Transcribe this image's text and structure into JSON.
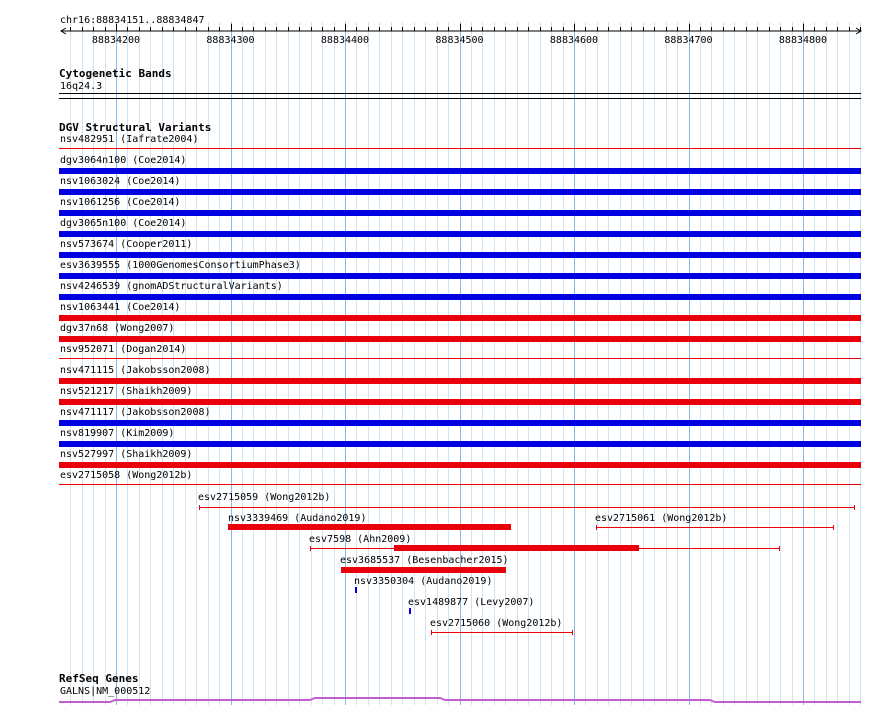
{
  "ruler": {
    "location": "chr16:88834151..88834847",
    "ticks": [
      "88834200",
      "88834300",
      "88834400",
      "88834500",
      "88834600",
      "88834700",
      "88834800"
    ]
  },
  "cytoband": {
    "title": "Cytogenetic Bands",
    "band": "16q24.3"
  },
  "dgv": {
    "title": "DGV Structural Variants",
    "stacked": [
      {
        "label": "nsv482951 (Iafrate2004)",
        "color": "#e8000b",
        "style": "thin"
      },
      {
        "label": "dgv3064n100 (Coe2014)",
        "color": "#0000e0",
        "style": "thick"
      },
      {
        "label": "nsv1063024 (Coe2014)",
        "color": "#0000e0",
        "style": "thick"
      },
      {
        "label": "nsv1061256 (Coe2014)",
        "color": "#0000e0",
        "style": "thick"
      },
      {
        "label": "dgv3065n100 (Coe2014)",
        "color": "#0000e0",
        "style": "thick"
      },
      {
        "label": "nsv573674 (Cooper2011)",
        "color": "#0000e0",
        "style": "thick"
      },
      {
        "label": "esv3639555 (1000GenomesConsortiumPhase3)",
        "color": "#0000e0",
        "style": "thick"
      },
      {
        "label": "nsv4246539 (gnomADStructuralVariants)",
        "color": "#0000e0",
        "style": "thick"
      },
      {
        "label": "nsv1063441 (Coe2014)",
        "color": "#e8000b",
        "style": "thick"
      },
      {
        "label": "dgv37n68 (Wong2007)",
        "color": "#e8000b",
        "style": "thick"
      },
      {
        "label": "nsv952071 (Dogan2014)",
        "color": "#e8000b",
        "style": "thin"
      },
      {
        "label": "nsv471115 (Jakobsson2008)",
        "color": "#e8000b",
        "style": "thick"
      },
      {
        "label": "nsv521217 (Shaikh2009)",
        "color": "#e8000b",
        "style": "thick"
      },
      {
        "label": "nsv471117 (Jakobsson2008)",
        "color": "#0000e0",
        "style": "thick"
      },
      {
        "label": "nsv819907 (Kim2009)",
        "color": "#0000e0",
        "style": "thick"
      },
      {
        "label": "nsv527997 (Shaikh2009)",
        "color": "#e8000b",
        "style": "thick"
      },
      {
        "label": "esv2715058 (Wong2012b)",
        "color": "#e8000b",
        "style": "thin"
      }
    ],
    "features": [
      {
        "label": "esv2715059 (Wong2012b)"
      },
      {
        "label": "nsv3339469 (Audano2019)"
      },
      {
        "label": "esv2715061 (Wong2012b)"
      },
      {
        "label": "esv7598 (Ahn2009)"
      },
      {
        "label": "esv3685537 (Besenbacher2015)"
      },
      {
        "label": "nsv3350304 (Audano2019)"
      },
      {
        "label": "esv1489877 (Levy2007)"
      },
      {
        "label": "esv2715060 (Wong2012b)"
      }
    ]
  },
  "refseq": {
    "title": "RefSeq Genes",
    "gene": "GALNS|NM_000512",
    "color": "#c060d0"
  }
}
